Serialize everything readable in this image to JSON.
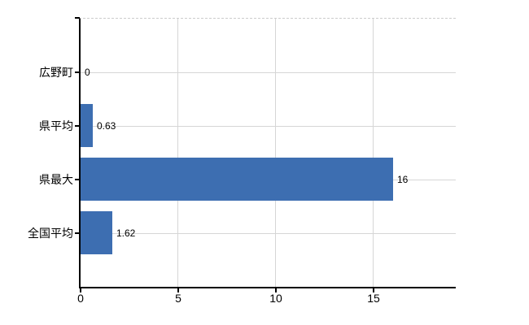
{
  "chart_data": {
    "type": "bar",
    "orientation": "horizontal",
    "title": "",
    "categories": [
      "広野町",
      "県平均",
      "県最大",
      "全国平均"
    ],
    "values": [
      0,
      0.63,
      16,
      1.62
    ],
    "value_labels": [
      "0",
      "0.63",
      "16",
      "1.62"
    ],
    "x_ticks": [
      0,
      5,
      10,
      15
    ],
    "x_tick_labels": [
      "0",
      "5",
      "10",
      "15"
    ],
    "xlim": [
      0,
      19.2
    ],
    "grid": true,
    "legend": false,
    "colors": {
      "bar": "#3d6eb1",
      "axis": "#000000",
      "gridline": "#d6d6d6",
      "plot_top_border": "#cccccc",
      "text": "#000000",
      "background": "#ffffff"
    }
  }
}
